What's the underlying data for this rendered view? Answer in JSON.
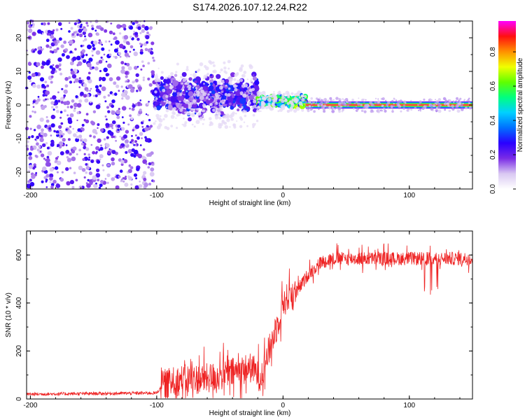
{
  "title": "S174.2026.107.12.24.R22",
  "colors": {
    "snr_line": "#ee2222",
    "colormap": [
      "#ffffff",
      "#d9c8f2",
      "#7a2ce6",
      "#2a00ff",
      "#0070ff",
      "#00d0ff",
      "#00ff80",
      "#60ff00",
      "#f0ff00",
      "#ff9000",
      "#ff1010",
      "#ff00ff"
    ]
  },
  "chart_data": [
    {
      "type": "heatmap",
      "name": "spectrogram",
      "xlabel": "Height of straight line (km)",
      "ylabel": "Frequency (Hz)",
      "xlim": [
        -203,
        150
      ],
      "ylim": [
        -25,
        25
      ],
      "xticks": [
        -200,
        -100,
        0,
        100
      ],
      "xtick_labels": [
        "-200",
        "-100",
        "0",
        "100"
      ],
      "yticks": [
        -20,
        -10,
        0,
        10,
        20
      ],
      "ytick_labels": [
        "-20",
        "-10",
        "0",
        "10",
        "20"
      ],
      "colorbar": {
        "label": "Normalized spectral amplitude",
        "range": [
          0,
          0.98
        ],
        "ticks": [
          0.0,
          0.2,
          0.4,
          0.6,
          0.8
        ],
        "tick_labels": [
          "0.0",
          "0.2",
          "0.4",
          "0.6",
          "0.8"
        ]
      },
      "regions": [
        {
          "x_range": [
            -203,
            -102
          ],
          "freq_range": [
            -25,
            25
          ],
          "amplitude": 0.05,
          "description": "scattered noise speckle"
        },
        {
          "x_range": [
            -102,
            -20
          ],
          "freq_center": 3,
          "freq_spread": 4,
          "amplitude": 0.25,
          "description": "broadband blobs"
        },
        {
          "x_range": [
            -20,
            18
          ],
          "freq_center": 1,
          "freq_spread": 1.2,
          "amplitude": 0.55
        },
        {
          "x_range": [
            18,
            150
          ],
          "freq_center": 0,
          "freq_spread": 0.8,
          "amplitude": 0.9,
          "description": "narrow tone"
        }
      ]
    },
    {
      "type": "line",
      "name": "snr",
      "xlabel": "Height of straight line (km)",
      "ylabel": "SNR (10 * v/v)",
      "xlim": [
        -203,
        150
      ],
      "ylim": [
        0,
        700
      ],
      "xticks": [
        -200,
        -100,
        0,
        100
      ],
      "xtick_labels": [
        "-200",
        "-100",
        "0",
        "100"
      ],
      "yticks": [
        0,
        200,
        400,
        600
      ],
      "ytick_labels": [
        "0",
        "200",
        "400",
        "600"
      ],
      "envelope": {
        "x": [
          -203,
          -100,
          -95,
          -80,
          -60,
          -40,
          -25,
          -18,
          -10,
          -5,
          0,
          5,
          10,
          20,
          30,
          40,
          60,
          100,
          150
        ],
        "y": [
          20,
          25,
          60,
          80,
          85,
          110,
          130,
          90,
          220,
          300,
          400,
          430,
          440,
          520,
          570,
          585,
          585,
          585,
          585
        ]
      },
      "series": [
        {
          "name": "SNR",
          "noise_amplitude": 40
        }
      ]
    }
  ]
}
